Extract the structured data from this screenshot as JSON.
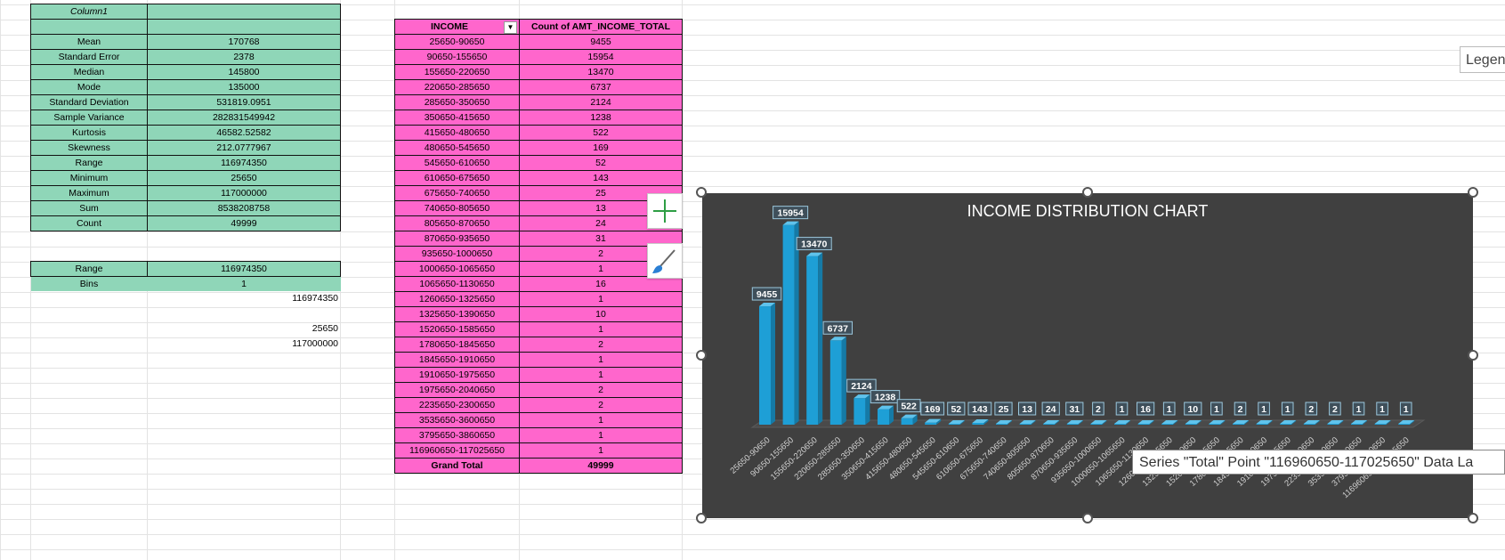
{
  "stats_table": {
    "header": "Column1",
    "rows": [
      {
        "label": "Mean",
        "value": "170768"
      },
      {
        "label": "Standard Error",
        "value": "2378"
      },
      {
        "label": "Median",
        "value": "145800"
      },
      {
        "label": "Mode",
        "value": "135000"
      },
      {
        "label": "Standard Deviation",
        "value": "531819.0951"
      },
      {
        "label": "Sample Variance",
        "value": "282831549942"
      },
      {
        "label": "Kurtosis",
        "value": "46582.52582"
      },
      {
        "label": "Skewness",
        "value": "212.0777967"
      },
      {
        "label": "Range",
        "value": "116974350"
      },
      {
        "label": "Minimum",
        "value": "25650"
      },
      {
        "label": "Maximum",
        "value": "117000000"
      },
      {
        "label": "Sum",
        "value": "8538208758"
      },
      {
        "label": "Count",
        "value": "49999"
      }
    ]
  },
  "range_table": {
    "range_label": "Range",
    "range_value": "116974350",
    "bins_label": "Bins",
    "bins_value": "1",
    "extra_1": "116974350",
    "extra_2": "25650",
    "extra_3": "117000000"
  },
  "pivot": {
    "col1_header": "INCOME",
    "col2_header": "Count of AMT_INCOME_TOTAL",
    "rows": [
      {
        "bin": "25650-90650",
        "count": "9455"
      },
      {
        "bin": "90650-155650",
        "count": "15954"
      },
      {
        "bin": "155650-220650",
        "count": "13470"
      },
      {
        "bin": "220650-285650",
        "count": "6737"
      },
      {
        "bin": "285650-350650",
        "count": "2124"
      },
      {
        "bin": "350650-415650",
        "count": "1238"
      },
      {
        "bin": "415650-480650",
        "count": "522"
      },
      {
        "bin": "480650-545650",
        "count": "169"
      },
      {
        "bin": "545650-610650",
        "count": "52"
      },
      {
        "bin": "610650-675650",
        "count": "143"
      },
      {
        "bin": "675650-740650",
        "count": "25"
      },
      {
        "bin": "740650-805650",
        "count": "13"
      },
      {
        "bin": "805650-870650",
        "count": "24"
      },
      {
        "bin": "870650-935650",
        "count": "31"
      },
      {
        "bin": "935650-1000650",
        "count": "2"
      },
      {
        "bin": "1000650-1065650",
        "count": "1"
      },
      {
        "bin": "1065650-1130650",
        "count": "16"
      },
      {
        "bin": "1260650-1325650",
        "count": "1"
      },
      {
        "bin": "1325650-1390650",
        "count": "10"
      },
      {
        "bin": "1520650-1585650",
        "count": "1"
      },
      {
        "bin": "1780650-1845650",
        "count": "2"
      },
      {
        "bin": "1845650-1910650",
        "count": "1"
      },
      {
        "bin": "1910650-1975650",
        "count": "1"
      },
      {
        "bin": "1975650-2040650",
        "count": "2"
      },
      {
        "bin": "2235650-2300650",
        "count": "2"
      },
      {
        "bin": "3535650-3600650",
        "count": "1"
      },
      {
        "bin": "3795650-3860650",
        "count": "1"
      },
      {
        "bin": "116960650-117025650",
        "count": "1"
      }
    ],
    "total_label": "Grand Total",
    "total_value": "49999"
  },
  "tooltip": "Series \"Total\" Point \"116960650-117025650\" Data La",
  "legend_tip": "Legen",
  "colors": {
    "stats_fill": "#8fd6b8",
    "pivot_fill": "#ff66cc",
    "chart_bg": "#404040",
    "bar": "#1e9fd6"
  },
  "chart_data": {
    "type": "bar",
    "title": "INCOME DISTRIBUTION CHART",
    "series": [
      {
        "name": "Total",
        "values": [
          9455,
          15954,
          13470,
          6737,
          2124,
          1238,
          522,
          169,
          52,
          143,
          25,
          13,
          24,
          31,
          2,
          1,
          16,
          1,
          10,
          1,
          2,
          1,
          1,
          2,
          2,
          1,
          1,
          1
        ]
      }
    ],
    "categories": [
      "25650-90650",
      "90650-155650",
      "155650-220650",
      "220650-285650",
      "285650-350650",
      "350650-415650",
      "415650-480650",
      "480650-545650",
      "545650-610650",
      "610650-675650",
      "675650-740650",
      "740650-805650",
      "805650-870650",
      "870650-935650",
      "935650-1000650",
      "1000650-1065650",
      "1065650-1130650",
      "1260650-1325650",
      "1325650-1390650",
      "1520650-1585650",
      "1780650-1845650",
      "1845650-1910650",
      "1910650-1975650",
      "1975650-2040650",
      "2235650-2300650",
      "3535650-3600650",
      "3795650-3860650",
      "116960650-117025650"
    ],
    "ylim": [
      0,
      16000
    ],
    "data_labels": true,
    "legend": "none",
    "grid": false
  }
}
